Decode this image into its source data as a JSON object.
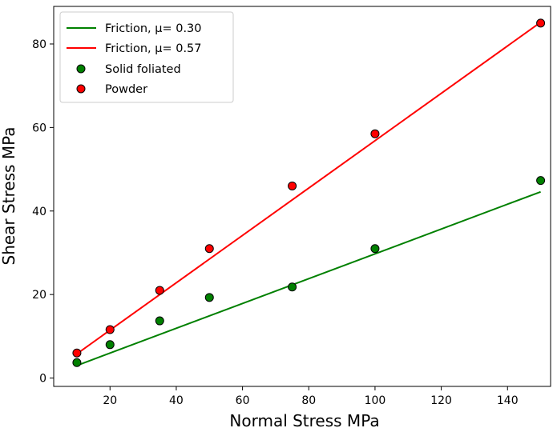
{
  "chart_data": {
    "type": "scatter",
    "title": "",
    "xlabel": "Normal Stress MPa",
    "ylabel": "Shear Stress MPa",
    "xlim": [
      3,
      153
    ],
    "ylim": [
      -2,
      89
    ],
    "xticks": [
      "20",
      "40",
      "60",
      "80",
      "100",
      "120",
      "140"
    ],
    "yticks": [
      "0",
      "20",
      "40",
      "60",
      "80"
    ],
    "grid": false,
    "legend_position": "upper-left",
    "lines": [
      {
        "name": "Friction, μ= 0.30",
        "color": "#008000",
        "x": [
          10,
          150
        ],
        "y": [
          3.0,
          44.6
        ]
      },
      {
        "name": "Friction, μ= 0.57",
        "color": "#ff0000",
        "x": [
          10,
          150
        ],
        "y": [
          5.8,
          85.2
        ]
      }
    ],
    "series": [
      {
        "name": "Solid foliated",
        "color": "#008000",
        "x": [
          10,
          20,
          35,
          50,
          75,
          100,
          150
        ],
        "y": [
          3.7,
          8.0,
          13.7,
          19.3,
          21.8,
          31.0,
          47.3
        ]
      },
      {
        "name": "Powder",
        "color": "#ff0000",
        "x": [
          10,
          20,
          35,
          50,
          75,
          100,
          150
        ],
        "y": [
          6.0,
          11.6,
          21.0,
          31.0,
          46.0,
          58.5,
          85.0
        ]
      }
    ]
  }
}
